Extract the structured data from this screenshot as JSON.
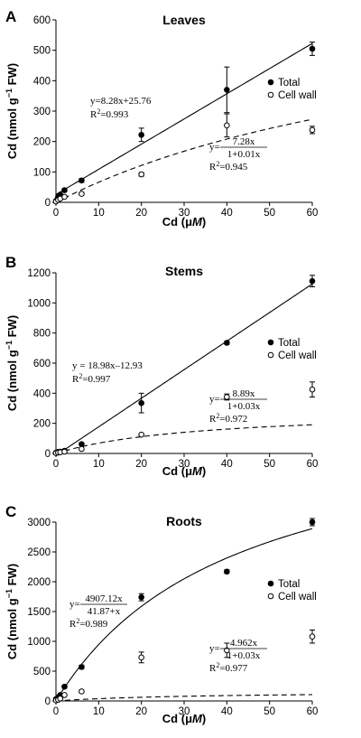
{
  "chart_data": [
    {
      "type": "scatter",
      "panel": "A",
      "title": "Leaves",
      "xlabel": "Cd (μM)",
      "ylabel": "Cd (nmol g⁻¹ FW)",
      "xlim": [
        0,
        60
      ],
      "ylim": [
        0,
        600
      ],
      "xticks": [
        0,
        10,
        20,
        30,
        40,
        50,
        60
      ],
      "yticks": [
        0,
        100,
        200,
        300,
        400,
        500,
        600
      ],
      "legend": {
        "position": "right",
        "entries": [
          "Total",
          "Cell wall"
        ]
      },
      "series": [
        {
          "name": "Total",
          "marker": "filled-circle",
          "x": [
            0,
            0.5,
            1,
            2,
            6,
            20,
            40,
            60
          ],
          "y": [
            5,
            18,
            25,
            40,
            72,
            222,
            370,
            505
          ],
          "err": [
            2,
            3,
            4,
            5,
            6,
            22,
            75,
            22
          ],
          "fit": {
            "kind": "linear",
            "slope": 8.28,
            "intercept": 25.76,
            "style": "solid"
          },
          "equation": {
            "lines": [
              "y=8.28x+25.76",
              "R2=0.993"
            ]
          }
        },
        {
          "name": "Cell wall",
          "marker": "open-circle",
          "x": [
            0,
            0.5,
            1,
            2,
            6,
            20,
            40,
            60
          ],
          "y": [
            3,
            8,
            12,
            18,
            28,
            92,
            253,
            238
          ],
          "err": [
            1,
            2,
            2,
            3,
            4,
            6,
            38,
            12
          ],
          "fit": {
            "kind": "saturating",
            "a": 7.28,
            "b": 0.01,
            "style": "dashed"
          },
          "equation": {
            "prefix": "y=",
            "numerator": "7.28x",
            "denominator": "1+0.01x",
            "r2": "R2=0.945"
          }
        }
      ]
    },
    {
      "type": "scatter",
      "panel": "B",
      "title": "Stems",
      "xlabel": "Cd (μM)",
      "ylabel": "Cd (nmol g⁻¹ FW)",
      "xlim": [
        0,
        60
      ],
      "ylim": [
        0,
        1200
      ],
      "xticks": [
        0,
        10,
        20,
        30,
        40,
        50,
        60
      ],
      "yticks": [
        0,
        200,
        400,
        600,
        800,
        1000,
        1200
      ],
      "legend": {
        "position": "right",
        "entries": [
          "Total",
          "Cell wall"
        ]
      },
      "series": [
        {
          "name": "Total",
          "marker": "filled-circle",
          "x": [
            0,
            0.5,
            1,
            2,
            6,
            20,
            40,
            60
          ],
          "y": [
            5,
            10,
            12,
            18,
            62,
            335,
            735,
            1145
          ],
          "err": [
            2,
            3,
            3,
            4,
            8,
            65,
            10,
            38
          ],
          "fit": {
            "kind": "linear",
            "slope": 18.98,
            "intercept": -12.93,
            "style": "solid"
          },
          "equation": {
            "lines": [
              "y = 18.98x–12.93",
              "R2=0.997"
            ]
          }
        },
        {
          "name": "Cell wall",
          "marker": "open-circle",
          "x": [
            0,
            0.5,
            1,
            2,
            6,
            20,
            40,
            60
          ],
          "y": [
            3,
            6,
            8,
            12,
            30,
            125,
            375,
            425
          ],
          "err": [
            1,
            2,
            2,
            3,
            4,
            8,
            20,
            50
          ],
          "fit": {
            "kind": "saturating",
            "a": 8.89,
            "b": 0.03,
            "style": "dashed"
          },
          "equation": {
            "prefix": "y=",
            "numerator": "8.89x",
            "denominator": "1+0.03x",
            "r2": "R2=0.972"
          }
        }
      ]
    },
    {
      "type": "scatter",
      "panel": "C",
      "title": "Roots",
      "xlabel": "Cd (μM)",
      "ylabel": "Cd (nmol g⁻¹ FW)",
      "xlim": [
        0,
        60
      ],
      "ylim": [
        0,
        3000
      ],
      "xticks": [
        0,
        10,
        20,
        30,
        40,
        50,
        60
      ],
      "yticks": [
        0,
        500,
        1000,
        1500,
        2000,
        2500,
        3000
      ],
      "legend": {
        "position": "right",
        "entries": [
          "Total",
          "Cell wall"
        ]
      },
      "series": [
        {
          "name": "Total",
          "marker": "filled-circle",
          "x": [
            0,
            0.5,
            1,
            2,
            6,
            20,
            40,
            60
          ],
          "y": [
            30,
            60,
            100,
            240,
            570,
            1740,
            2170,
            3000
          ],
          "err": [
            10,
            15,
            20,
            25,
            30,
            60,
            30,
            60
          ],
          "fit": {
            "kind": "michaelis",
            "vmax": 4907.12,
            "k": 41.87,
            "style": "solid"
          },
          "equation": {
            "prefix": "y=",
            "numerator": "4907.12x",
            "denominator": "41.87+x",
            "r2": "R2=0.989"
          }
        },
        {
          "name": "Cell wall",
          "marker": "open-circle",
          "x": [
            0,
            0.5,
            1,
            2,
            6,
            20,
            40,
            60
          ],
          "y": [
            10,
            20,
            40,
            100,
            160,
            730,
            850,
            1080
          ],
          "err": [
            5,
            8,
            10,
            15,
            20,
            90,
            120,
            110
          ],
          "fit": {
            "kind": "saturating",
            "a": 4.962,
            "b": 0.03,
            "style": "dashed"
          },
          "equation": {
            "prefix": "y=",
            "numerator": "4.962x",
            "denominator": "1+0.03x",
            "r2": "R2=0.977"
          }
        }
      ]
    }
  ]
}
